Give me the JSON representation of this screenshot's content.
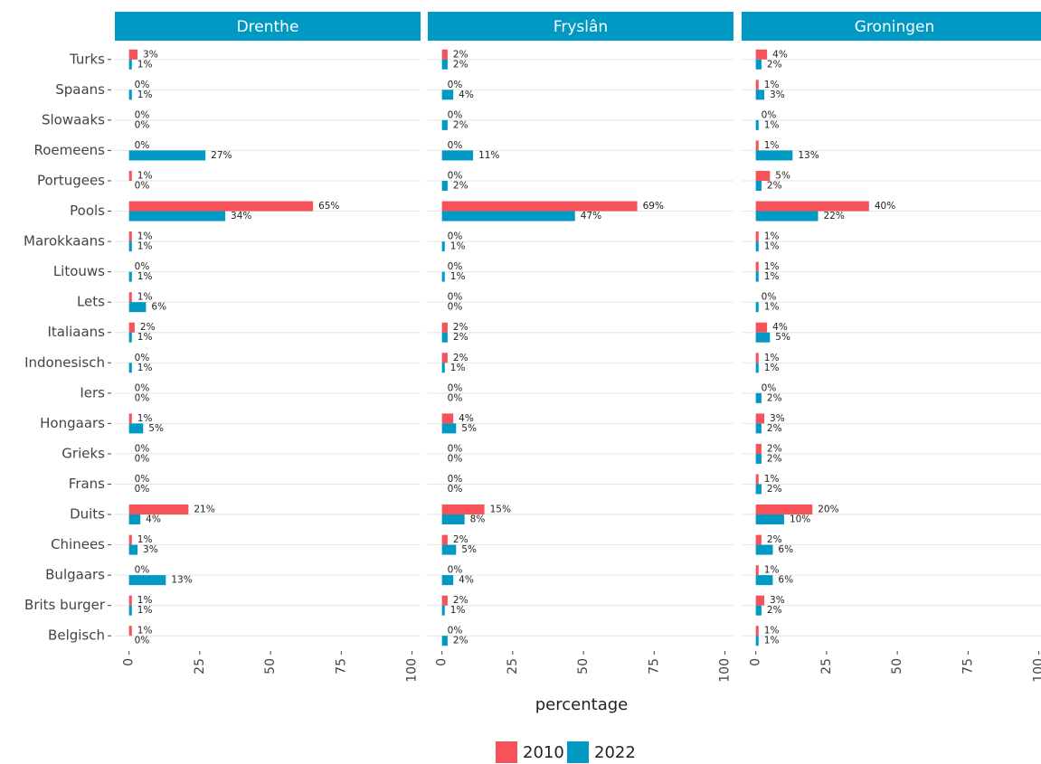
{
  "chart_data": {
    "type": "bar",
    "orientation": "horizontal",
    "categories": [
      "Turks",
      "Spaans",
      "Slowaaks",
      "Roemeens",
      "Portugees",
      "Pools",
      "Marokkaans",
      "Litouws",
      "Lets",
      "Italiaans",
      "Indonesisch",
      "Iers",
      "Hongaars",
      "Grieks",
      "Frans",
      "Duits",
      "Chinees",
      "Bulgaars",
      "Brits burger",
      "Belgisch"
    ],
    "series": [
      {
        "name": "2010",
        "color": "#f5525a"
      },
      {
        "name": "2022",
        "color": "#0099c4"
      }
    ],
    "facets": [
      {
        "title": "Drenthe",
        "values": [
          [
            3,
            0,
            0,
            0,
            1,
            65,
            1,
            0,
            1,
            2,
            0,
            0,
            1,
            0,
            0,
            21,
            1,
            0,
            1,
            1
          ],
          [
            1,
            1,
            0,
            27,
            0,
            34,
            1,
            1,
            6,
            1,
            1,
            0,
            5,
            0,
            0,
            4,
            3,
            13,
            1,
            0
          ]
        ],
        "value_labels": [
          [
            "3%",
            "0%",
            "0%",
            "0%",
            "1%",
            "65%",
            "1%",
            "0%",
            "1%",
            "2%",
            "0%",
            "0%",
            "1%",
            "0%",
            "0%",
            "21%",
            "1%",
            "0%",
            "1%",
            "1%"
          ],
          [
            "1%",
            "1%",
            "0%",
            "27%",
            "0%",
            "34%",
            "1%",
            "1%",
            "6%",
            "1%",
            "1%",
            "0%",
            "5%",
            "0%",
            "0%",
            "4%",
            "3%",
            "13%",
            "1%",
            "0%"
          ]
        ]
      },
      {
        "title": "Fryslân",
        "values": [
          [
            2,
            0,
            0,
            0,
            0,
            69,
            0,
            0,
            0,
            2,
            2,
            0,
            4,
            0,
            0,
            15,
            2,
            0,
            2,
            0
          ],
          [
            2,
            4,
            2,
            11,
            2,
            47,
            1,
            1,
            0,
            2,
            1,
            0,
            5,
            0,
            0,
            8,
            5,
            4,
            1,
            2
          ]
        ],
        "value_labels": [
          [
            "2%",
            "0%",
            "0%",
            "0%",
            "0%",
            "69%",
            "0%",
            "0%",
            "0%",
            "2%",
            "2%",
            "0%",
            "4%",
            "0%",
            "0%",
            "15%",
            "2%",
            "0%",
            "2%",
            "0%"
          ],
          [
            "2%",
            "4%",
            "2%",
            "11%",
            "2%",
            "47%",
            "1%",
            "1%",
            "0%",
            "2%",
            "1%",
            "0%",
            "5%",
            "0%",
            "0%",
            "8%",
            "5%",
            "4%",
            "1%",
            "2%"
          ]
        ]
      },
      {
        "title": "Groningen",
        "values": [
          [
            4,
            1,
            0,
            1,
            5,
            40,
            1,
            1,
            0,
            4,
            1,
            0,
            3,
            2,
            1,
            20,
            2,
            1,
            3,
            1
          ],
          [
            2,
            3,
            1,
            13,
            2,
            22,
            1,
            1,
            1,
            5,
            1,
            2,
            2,
            2,
            2,
            10,
            6,
            6,
            2,
            1
          ]
        ],
        "value_labels": [
          [
            "4%",
            "1%",
            "0%",
            "1%",
            "5%",
            "40%",
            "1%",
            "1%",
            "0%",
            "4%",
            "1%",
            "0%",
            "3%",
            "2%",
            "1%",
            "20%",
            "2%",
            "1%",
            "3%",
            "1%"
          ],
          [
            "2%",
            "3%",
            "1%",
            "13%",
            "2%",
            "22%",
            "1%",
            "1%",
            "1%",
            "5%",
            "1%",
            "2%",
            "2%",
            "2%",
            "2%",
            "10%",
            "6%",
            "6%",
            "2%",
            "1%"
          ]
        ]
      }
    ],
    "xlabel": "percentage",
    "xlim": [
      -5,
      103
    ],
    "xticks": [
      0,
      25,
      50,
      75,
      100
    ],
    "grid": true,
    "legend": "bottom"
  }
}
